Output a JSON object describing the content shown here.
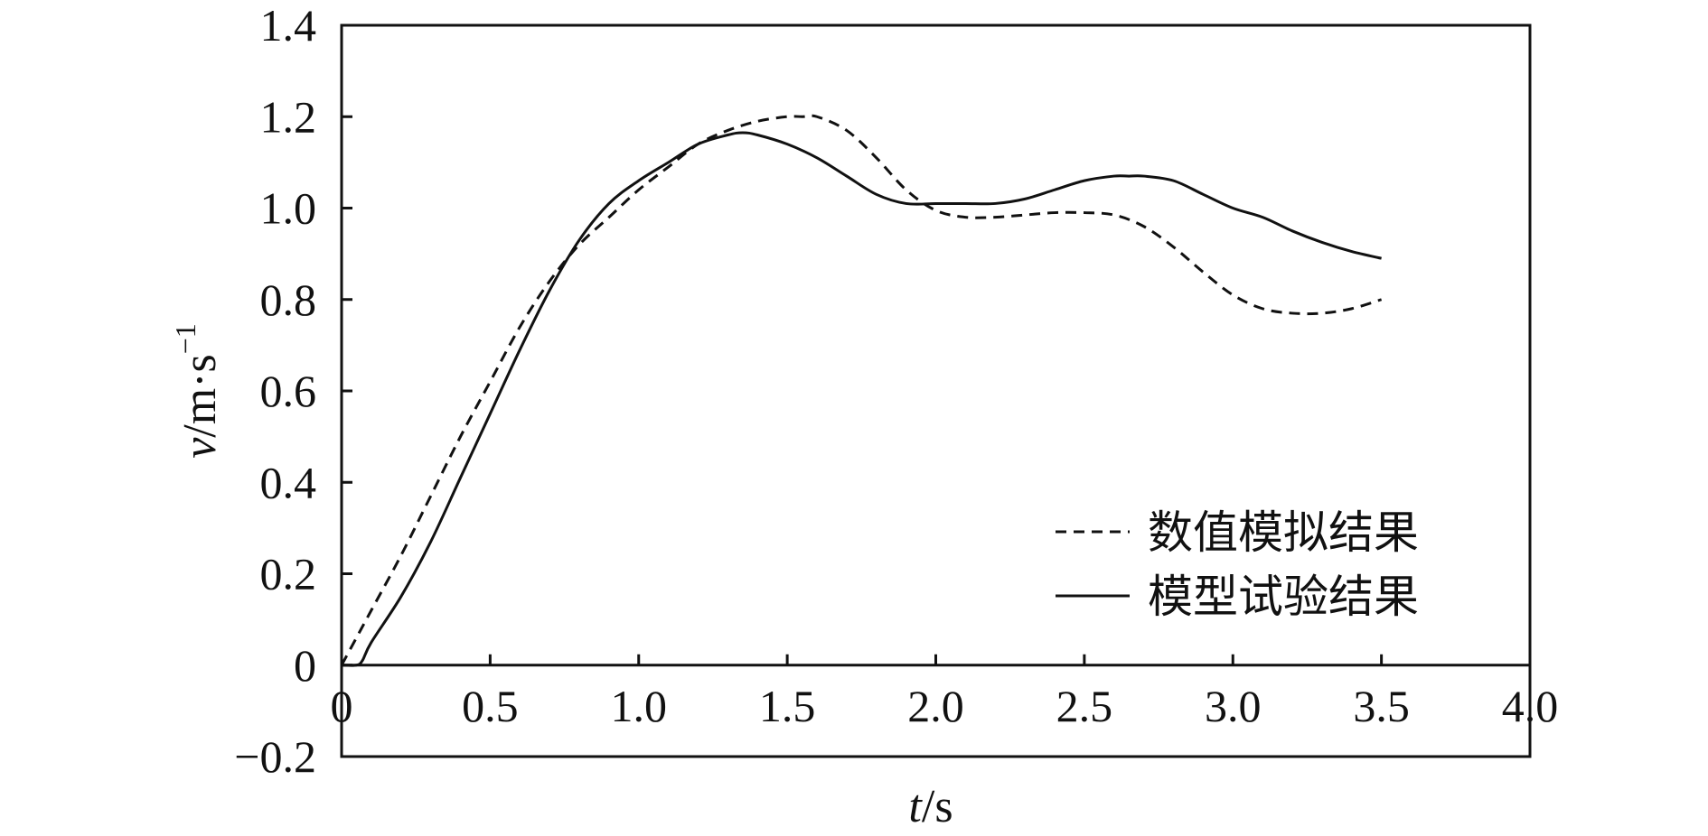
{
  "chart_data": {
    "type": "line",
    "xlabel": {
      "var": "t",
      "unit": "/s"
    },
    "ylabel": {
      "var": "v",
      "unit": "/m·s",
      "sup": "−1"
    },
    "xlim": [
      0,
      4.0
    ],
    "ylim": [
      -0.2,
      1.4
    ],
    "xticks": [
      {
        "value": 0,
        "label": "0"
      },
      {
        "value": 0.5,
        "label": "0.5"
      },
      {
        "value": 1.0,
        "label": "1.0"
      },
      {
        "value": 1.5,
        "label": "1.5"
      },
      {
        "value": 2.0,
        "label": "2.0"
      },
      {
        "value": 2.5,
        "label": "2.5"
      },
      {
        "value": 3.0,
        "label": "3.0"
      },
      {
        "value": 3.5,
        "label": "3.5"
      },
      {
        "value": 4.0,
        "label": "4.0"
      }
    ],
    "yticks": [
      {
        "value": -0.2,
        "label": "−0.2"
      },
      {
        "value": 0,
        "label": "0"
      },
      {
        "value": 0.2,
        "label": "0.2"
      },
      {
        "value": 0.4,
        "label": "0.4"
      },
      {
        "value": 0.6,
        "label": "0.6"
      },
      {
        "value": 0.8,
        "label": "0.8"
      },
      {
        "value": 1.0,
        "label": "1.0"
      },
      {
        "value": 1.2,
        "label": "1.2"
      },
      {
        "value": 1.4,
        "label": "1.4"
      }
    ],
    "grid": false,
    "legend_position": "lower-right",
    "series": [
      {
        "name": "数值模拟结果",
        "style": "dashed",
        "color": "#111111",
        "x": [
          0,
          0.05,
          0.1,
          0.2,
          0.3,
          0.4,
          0.5,
          0.6,
          0.7,
          0.8,
          0.9,
          1.0,
          1.1,
          1.2,
          1.3,
          1.4,
          1.5,
          1.55,
          1.6,
          1.7,
          1.8,
          1.9,
          2.0,
          2.1,
          2.2,
          2.3,
          2.4,
          2.5,
          2.6,
          2.7,
          2.8,
          2.9,
          3.0,
          3.1,
          3.2,
          3.3,
          3.4,
          3.5
        ],
        "y": [
          0,
          0.06,
          0.12,
          0.24,
          0.37,
          0.5,
          0.62,
          0.74,
          0.84,
          0.92,
          0.98,
          1.04,
          1.09,
          1.14,
          1.17,
          1.19,
          1.2,
          1.2,
          1.2,
          1.17,
          1.11,
          1.04,
          0.995,
          0.98,
          0.98,
          0.985,
          0.99,
          0.99,
          0.985,
          0.96,
          0.915,
          0.86,
          0.81,
          0.78,
          0.77,
          0.77,
          0.78,
          0.8
        ]
      },
      {
        "name": "模型试验结果",
        "style": "solid",
        "color": "#111111",
        "x": [
          0,
          0.05,
          0.07,
          0.1,
          0.2,
          0.3,
          0.4,
          0.5,
          0.6,
          0.7,
          0.8,
          0.9,
          1.0,
          1.1,
          1.2,
          1.3,
          1.35,
          1.4,
          1.5,
          1.6,
          1.7,
          1.8,
          1.9,
          2.0,
          2.1,
          2.2,
          2.3,
          2.4,
          2.5,
          2.6,
          2.65,
          2.7,
          2.8,
          2.9,
          3.0,
          3.1,
          3.2,
          3.3,
          3.4,
          3.5
        ],
        "y": [
          0,
          0,
          0.01,
          0.05,
          0.15,
          0.27,
          0.41,
          0.55,
          0.69,
          0.82,
          0.93,
          1.01,
          1.06,
          1.1,
          1.14,
          1.16,
          1.165,
          1.16,
          1.14,
          1.11,
          1.07,
          1.03,
          1.01,
          1.01,
          1.01,
          1.01,
          1.02,
          1.04,
          1.06,
          1.07,
          1.07,
          1.07,
          1.06,
          1.03,
          1.0,
          0.98,
          0.95,
          0.925,
          0.905,
          0.89
        ]
      }
    ]
  }
}
